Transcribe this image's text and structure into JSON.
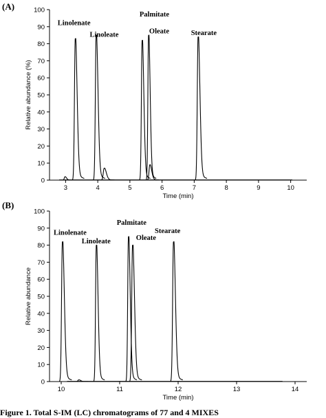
{
  "caption": "Figure 1. Total S-IM (LC) chromatograms of 77 and 4 MIXES",
  "chart_data": [
    {
      "type": "line",
      "panel": "(A)",
      "xlabel": "Time (min)",
      "ylabel": "Relative abundance (%)",
      "xlim": [
        2.5,
        10.5
      ],
      "ylim": [
        0,
        100
      ],
      "xticks": [
        3,
        4,
        5,
        6,
        7,
        8,
        9,
        10
      ],
      "yticks": [
        0,
        10,
        20,
        30,
        40,
        50,
        60,
        70,
        80,
        90,
        100
      ],
      "peaks": [
        {
          "x": 3.3,
          "y": 83,
          "w": 0.035
        },
        {
          "x": 3.95,
          "y": 85,
          "w": 0.035
        },
        {
          "x": 5.38,
          "y": 82,
          "w": 0.032
        },
        {
          "x": 5.58,
          "y": 85,
          "w": 0.03
        },
        {
          "x": 7.12,
          "y": 84,
          "w": 0.035
        },
        {
          "x": 2.98,
          "y": 2,
          "w": 0.03
        },
        {
          "x": 4.2,
          "y": 7,
          "w": 0.04
        },
        {
          "x": 5.62,
          "y": 9,
          "w": 0.035
        }
      ],
      "annotations": [
        {
          "text": "Linolenate",
          "x": 2.75,
          "y": 91
        },
        {
          "text": "Linoleate",
          "x": 3.75,
          "y": 84
        },
        {
          "text": "Palmitate",
          "x": 5.3,
          "y": 96
        },
        {
          "text": "Oleate",
          "x": 5.6,
          "y": 86
        },
        {
          "text": "Stearate",
          "x": 6.9,
          "y": 85
        }
      ]
    },
    {
      "type": "line",
      "panel": "(B)",
      "xlabel": "Time (min)",
      "ylabel": "Relative abundance",
      "xlim": [
        9.8,
        14.2
      ],
      "ylim": [
        0,
        100
      ],
      "xticks": [
        10,
        11,
        12,
        13,
        14
      ],
      "yticks": [
        0,
        10,
        20,
        30,
        40,
        50,
        60,
        70,
        80,
        90,
        100
      ],
      "peaks": [
        {
          "x": 10.02,
          "y": 82,
          "w": 0.02
        },
        {
          "x": 10.6,
          "y": 80,
          "w": 0.018
        },
        {
          "x": 11.15,
          "y": 85,
          "w": 0.018
        },
        {
          "x": 11.22,
          "y": 80,
          "w": 0.02
        },
        {
          "x": 11.92,
          "y": 82,
          "w": 0.02
        },
        {
          "x": 10.3,
          "y": 1,
          "w": 0.02
        }
      ],
      "annotations": [
        {
          "text": "Linolenate",
          "x": 9.87,
          "y": 86
        },
        {
          "text": "Linoleate",
          "x": 10.35,
          "y": 81
        },
        {
          "text": "Palmitate",
          "x": 10.95,
          "y": 92
        },
        {
          "text": "Oleate",
          "x": 11.28,
          "y": 83
        },
        {
          "text": "Stearate",
          "x": 11.6,
          "y": 87
        }
      ]
    }
  ]
}
